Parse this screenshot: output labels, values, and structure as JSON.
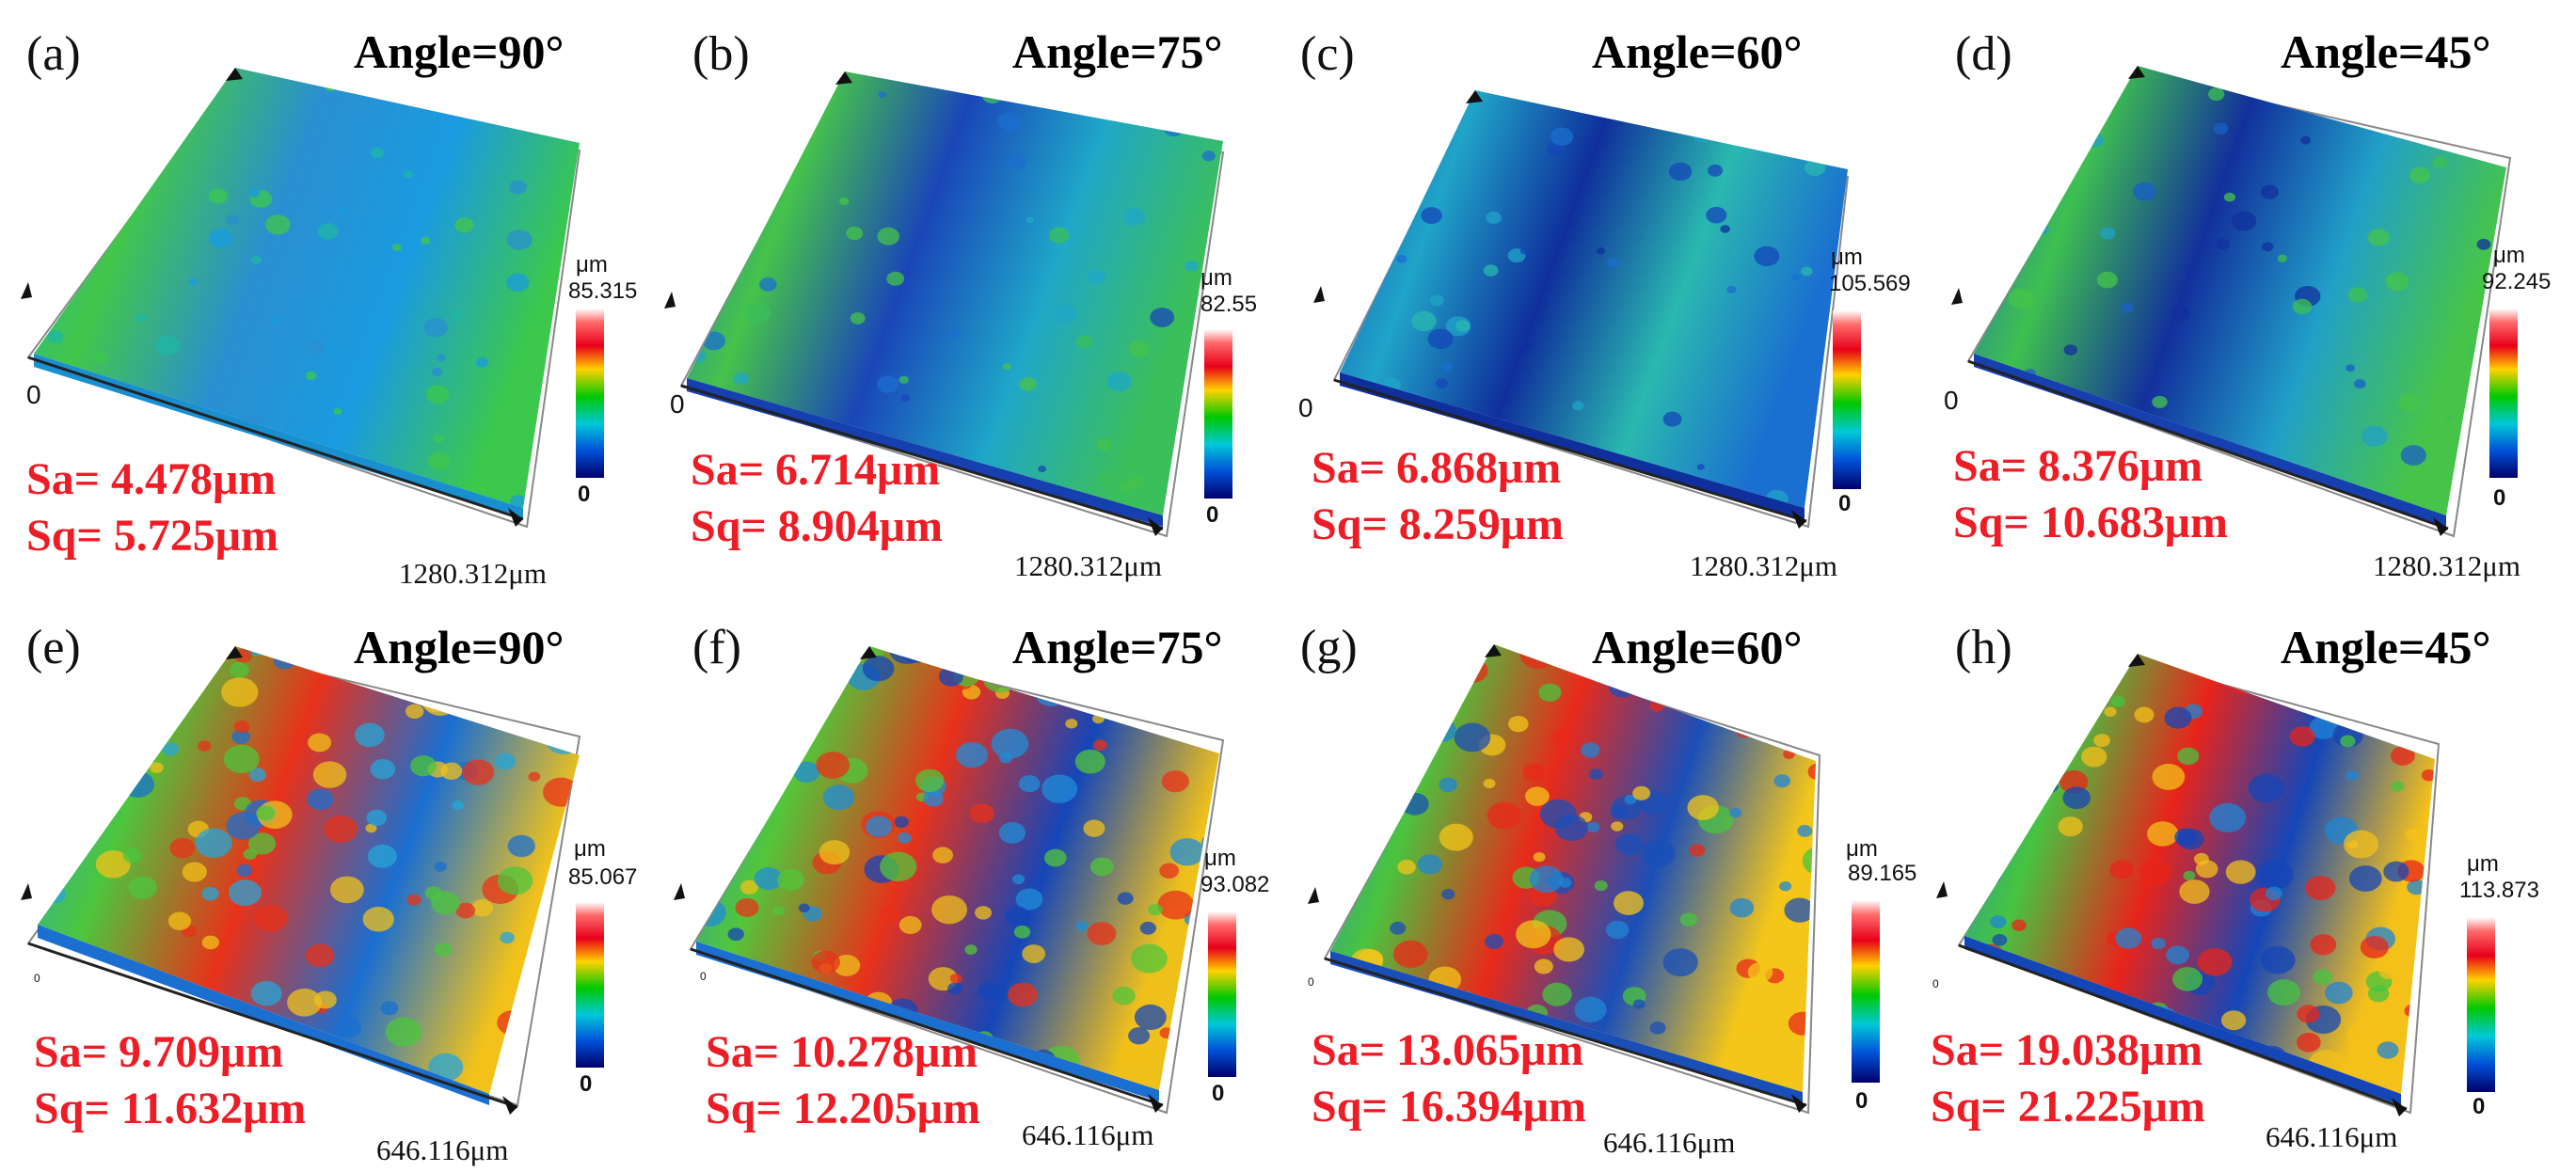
{
  "panels": [
    {
      "id": "a",
      "label": "(a)",
      "angle": "Angle=90°",
      "sa": "Sa= 4.478μm",
      "sq": "Sq= 5.725μm",
      "cb_unit": "μm",
      "cb_max": "85.315",
      "cb_min": "0",
      "dim": "1280.312μm",
      "origin": "0",
      "colors": [
        "#1fb7a6",
        "#43c64a",
        "#2a8fd0",
        "#1a9be0",
        "#3bc84c"
      ]
    },
    {
      "id": "b",
      "label": "(b)",
      "angle": "Angle=75°",
      "sa": "Sa= 6.714μm",
      "sq": "Sq= 8.904μm",
      "cb_unit": "μm",
      "cb_max": "82.55",
      "cb_min": "0",
      "dim": "1280.312μm",
      "origin": "0",
      "colors": [
        "#1b6fd0",
        "#45c34a",
        "#1a46b8",
        "#1fa7c8",
        "#3bbf5a"
      ]
    },
    {
      "id": "c",
      "label": "(c)",
      "angle": "Angle=60°",
      "sa": "Sa= 6.868μm",
      "sq": "Sq= 8.259μm",
      "cb_unit": "μm",
      "cb_max": "105.569",
      "cb_min": "0",
      "dim": "1280.312μm",
      "origin": "0",
      "colors": [
        "#1447b8",
        "#20a4c8",
        "#0f2f9c",
        "#2ab8b0",
        "#1a6fd0"
      ]
    },
    {
      "id": "d",
      "label": "(d)",
      "angle": "Angle=45°",
      "sa": "Sa= 8.376μm",
      "sq": "Sq= 10.683μm",
      "cb_unit": "μm",
      "cb_max": "92.245",
      "cb_min": "0",
      "dim": "1280.312μm",
      "origin": "0",
      "colors": [
        "#1a5fc8",
        "#3ec050",
        "#12309c",
        "#21a0c8",
        "#46c44a"
      ]
    },
    {
      "id": "e",
      "label": "(e)",
      "angle": "Angle=90°",
      "sa": "Sa= 9.709μm",
      "sq": "Sq= 11.632μm",
      "cb_unit": "μm",
      "cb_max": "85.067",
      "cb_min": "0",
      "dim": "646.116μm",
      "origin": "0",
      "colors": [
        "#26a6d8",
        "#4cc63c",
        "#e8321a",
        "#1a6fd0",
        "#f2c21a"
      ]
    },
    {
      "id": "f",
      "label": "(f)",
      "angle": "Angle=75°",
      "sa": "Sa= 10.278μm",
      "sq": "Sq= 12.205μm",
      "cb_unit": "μm",
      "cb_max": "93.082",
      "cb_min": "0",
      "dim": "646.116μm",
      "origin": "0",
      "colors": [
        "#1f8ed8",
        "#52c63a",
        "#e8321a",
        "#1446b8",
        "#f0c01a"
      ]
    },
    {
      "id": "g",
      "label": "(g)",
      "angle": "Angle=60°",
      "sa": "Sa= 13.065μm",
      "sq": "Sq= 16.394μm",
      "cb_unit": "μm",
      "cb_max": "89.165",
      "cb_min": "0",
      "dim": "646.116μm",
      "origin": "0",
      "colors": [
        "#1f86d4",
        "#4ac43e",
        "#e82a1a",
        "#1a4fb8",
        "#f4c61a"
      ]
    },
    {
      "id": "h",
      "label": "(h)",
      "angle": "Angle=45°",
      "sa": "Sa= 19.038μm",
      "sq": "Sq= 21.225μm",
      "cb_unit": "μm",
      "cb_max": "113.873",
      "cb_min": "0",
      "dim": "646.116μm",
      "origin": "0",
      "colors": [
        "#1f86d4",
        "#46c440",
        "#e8241a",
        "#1446b8",
        "#f4c01a"
      ]
    }
  ]
}
